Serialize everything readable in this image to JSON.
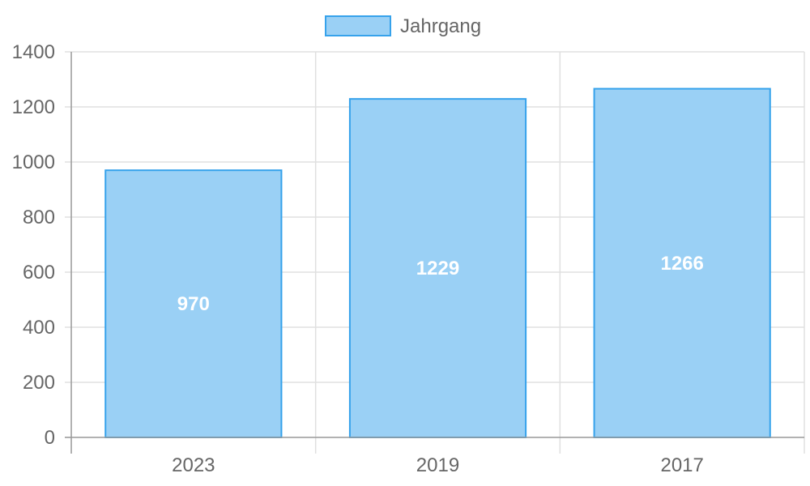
{
  "chart_data": {
    "type": "bar",
    "categories": [
      "2023",
      "2019",
      "2017"
    ],
    "series": [
      {
        "name": "Jahrgang",
        "values": [
          970,
          1229,
          1266
        ]
      }
    ],
    "ylim": [
      0,
      1400
    ],
    "yticks": [
      0,
      200,
      400,
      600,
      800,
      1000,
      1200,
      1400
    ],
    "grid": true,
    "legend": "top-center",
    "data_labels": true,
    "colors": {
      "bar_fill": "#9ad0f5",
      "bar_border": "#36a2eb",
      "grid": "#e0e0e0",
      "axis": "#999999",
      "text": "#666666",
      "data_label": "#ffffff"
    }
  }
}
